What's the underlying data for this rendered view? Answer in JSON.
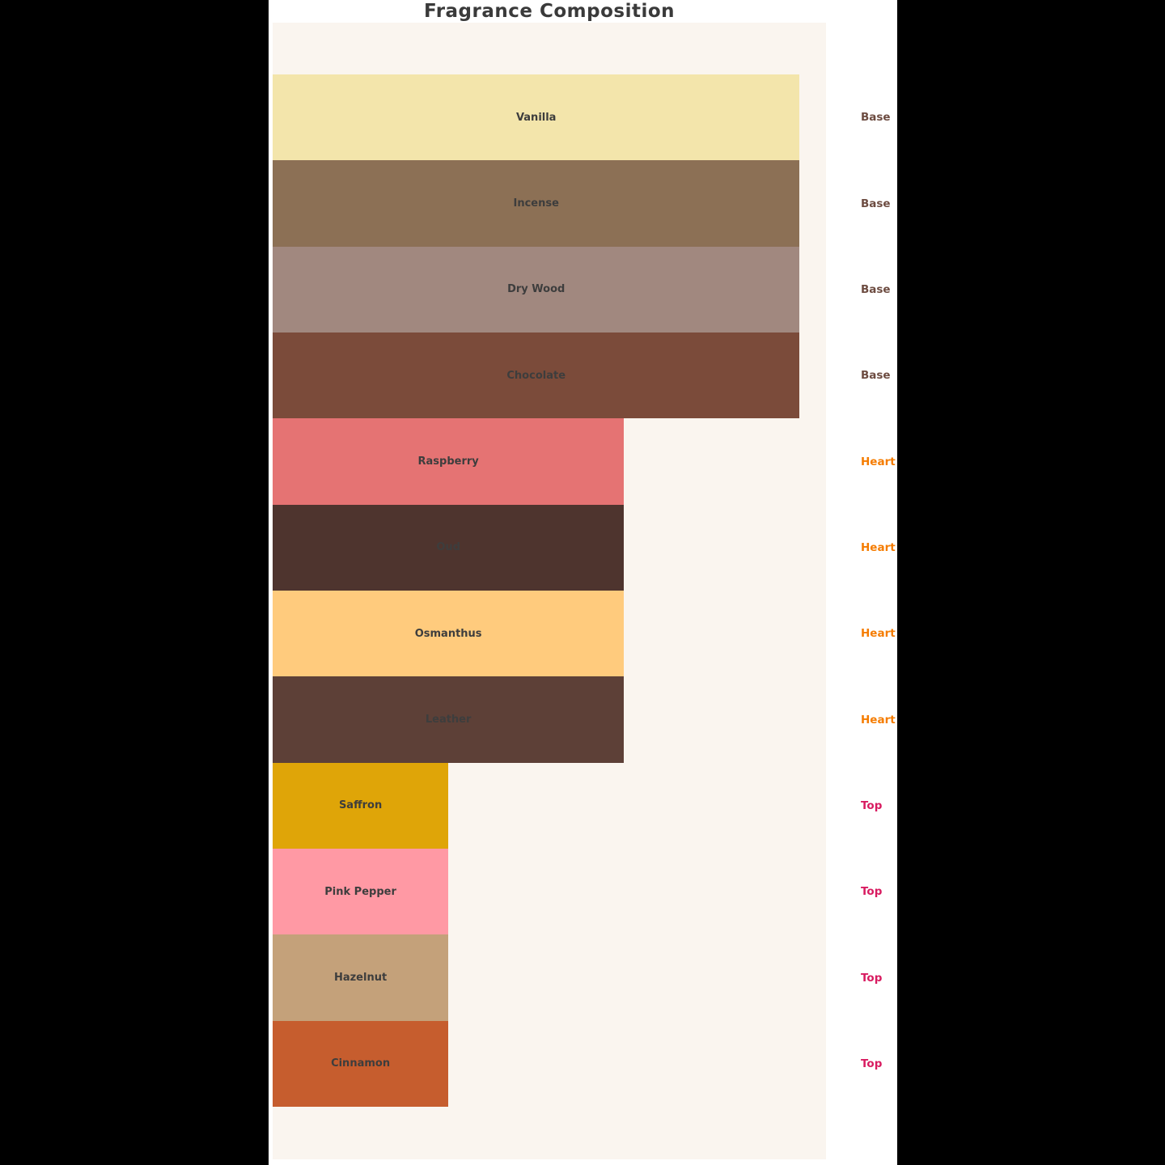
{
  "title": "Fragrance Composition",
  "colors": {
    "page_bg": "#000000",
    "figure_bg": "#ffffff",
    "plot_bg": "#faf5ef",
    "title_text": "#3a3a3a",
    "bar_label_text": "#3d3d3d"
  },
  "tier_colors": {
    "Base": "#6d4c41",
    "Heart": "#f57c00",
    "Top": "#d81b60"
  },
  "chart_data": {
    "type": "bar",
    "orientation": "horizontal",
    "title": "Fragrance Composition",
    "xlabel": "",
    "ylabel": "",
    "xlim": [
      0,
      3.15
    ],
    "grid": false,
    "legend": "none",
    "categories": [
      "Vanilla",
      "Incense",
      "Dry Wood",
      "Chocolate",
      "Raspberry",
      "Oud",
      "Osmanthus",
      "Leather",
      "Saffron",
      "Pink Pepper",
      "Hazelnut",
      "Cinnamon"
    ],
    "values": [
      3,
      3,
      3,
      3,
      2,
      2,
      2,
      2,
      1,
      1,
      1,
      1
    ],
    "right_margin_labels": [
      "Base",
      "Base",
      "Base",
      "Base",
      "Heart",
      "Heart",
      "Heart",
      "Heart",
      "Top",
      "Top",
      "Top",
      "Top"
    ],
    "notes": [
      {
        "name": "Vanilla",
        "tier": "Base",
        "value": 3,
        "color": "#f3e5ab"
      },
      {
        "name": "Incense",
        "tier": "Base",
        "value": 3,
        "color": "#8c7055"
      },
      {
        "name": "Dry Wood",
        "tier": "Base",
        "value": 3,
        "color": "#a1887f"
      },
      {
        "name": "Chocolate",
        "tier": "Base",
        "value": 3,
        "color": "#7b4b3a"
      },
      {
        "name": "Raspberry",
        "tier": "Heart",
        "value": 2,
        "color": "#e57373"
      },
      {
        "name": "Oud",
        "tier": "Heart",
        "value": 2,
        "color": "#4e342e"
      },
      {
        "name": "Osmanthus",
        "tier": "Heart",
        "value": 2,
        "color": "#ffcb7d"
      },
      {
        "name": "Leather",
        "tier": "Heart",
        "value": 2,
        "color": "#5d4037"
      },
      {
        "name": "Saffron",
        "tier": "Top",
        "value": 1,
        "color": "#dfa508"
      },
      {
        "name": "Pink Pepper",
        "tier": "Top",
        "value": 1,
        "color": "#ff99a4"
      },
      {
        "name": "Hazelnut",
        "tier": "Top",
        "value": 1,
        "color": "#c4a17a"
      },
      {
        "name": "Cinnamon",
        "tier": "Top",
        "value": 1,
        "color": "#c65d2e"
      }
    ]
  }
}
